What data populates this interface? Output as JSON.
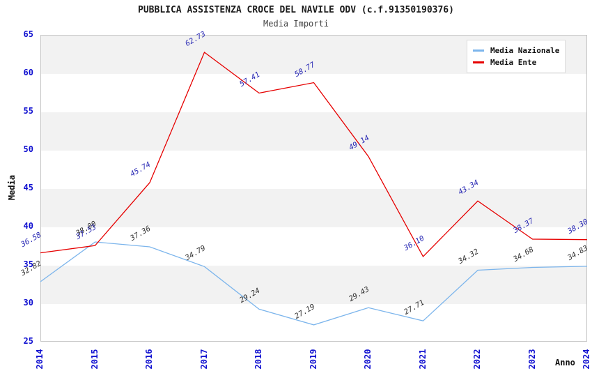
{
  "header": {
    "title": "PUBBLICA ASSISTENZA CROCE DEL NAVILE ODV (c.f.91350190376)",
    "subtitle": "Media Importi"
  },
  "axes": {
    "y_label": "Media",
    "x_label": "Anno"
  },
  "legend": {
    "items": [
      {
        "label": "Media Nazionale",
        "color": "#7cb5ec"
      },
      {
        "label": "Media Ente",
        "color": "#e60000"
      }
    ]
  },
  "colors": {
    "tick_label": "#1010d0",
    "band_gray": "#f2f2f2",
    "band_white": "#ffffff",
    "plot_border": "#c6c6c6"
  },
  "chart_data": {
    "type": "line",
    "title": "PUBBLICA ASSISTENZA CROCE DEL NAVILE ODV (c.f.91350190376)",
    "subtitle": "Media Importi",
    "xlabel": "Anno",
    "ylabel": "Media",
    "x": [
      2014,
      2015,
      2016,
      2017,
      2018,
      2019,
      2020,
      2021,
      2022,
      2023,
      2024
    ],
    "series": [
      {
        "name": "Media Nazionale",
        "color": "#7cb5ec",
        "label_color": "#303030",
        "values": [
          32.82,
          38.0,
          37.36,
          34.79,
          29.24,
          27.19,
          29.43,
          27.71,
          34.32,
          34.68,
          34.83
        ]
      },
      {
        "name": "Media Ente",
        "color": "#e60000",
        "label_color": "#2828b4",
        "values": [
          36.58,
          37.53,
          45.74,
          62.73,
          57.41,
          58.77,
          49.14,
          36.1,
          43.34,
          38.37,
          38.3
        ]
      }
    ],
    "ylim": [
      25,
      65
    ],
    "ytick_step": 5,
    "grid": "horizontal-bands",
    "legend_position": "top-right"
  }
}
